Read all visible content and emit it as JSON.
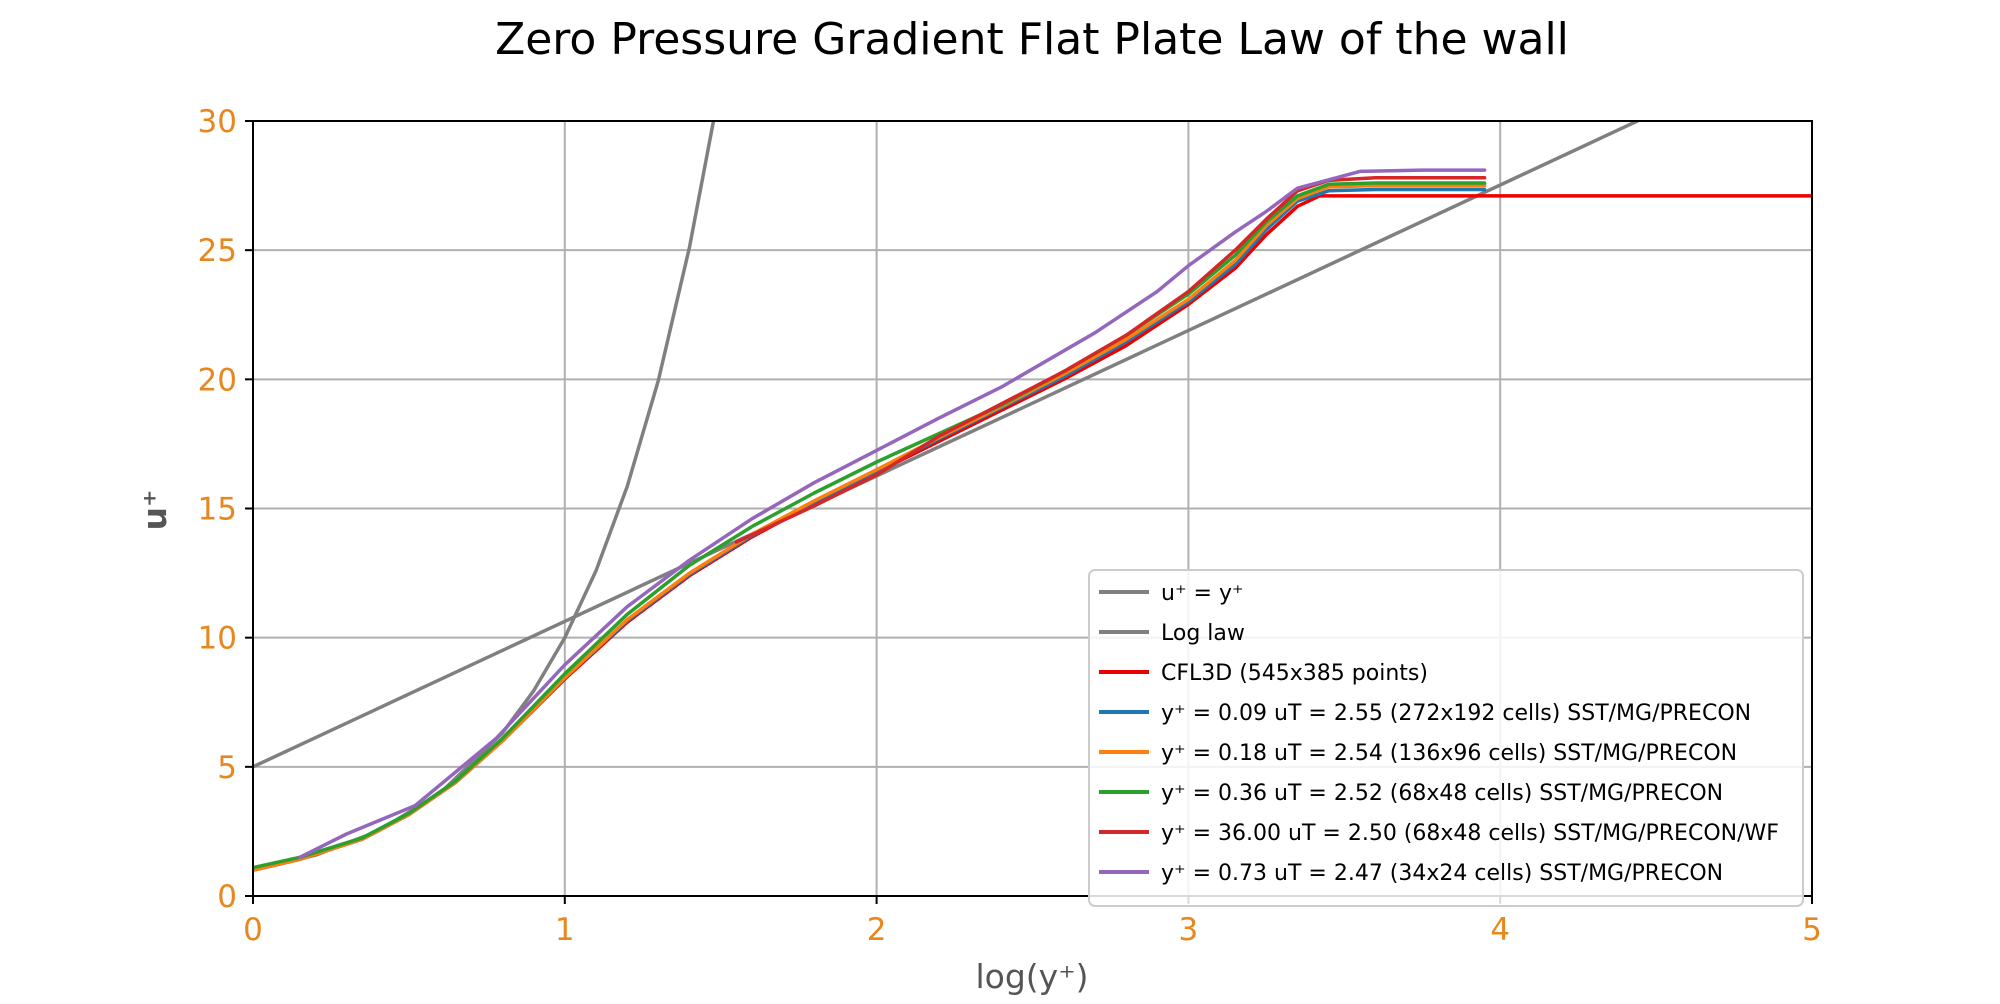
{
  "chart_data": {
    "type": "line",
    "title": "Zero Pressure Gradient Flat Plate Law of the wall",
    "xlabel": "log(y⁺)",
    "ylabel": "u⁺",
    "xlim": [
      0,
      5
    ],
    "ylim": [
      0,
      30
    ],
    "xticks": [
      "0",
      "1",
      "2",
      "3",
      "4",
      "5"
    ],
    "yticks": [
      "0",
      "5",
      "10",
      "15",
      "20",
      "25",
      "30"
    ],
    "grid": true,
    "legend_position": "bottom-right",
    "colors": {
      "tick_labels": "#E8871E",
      "axis_title": "#555555",
      "grid": "#b0b0b0"
    },
    "series": [
      {
        "name": "u⁺ = y⁺",
        "color": "#808080",
        "points": [
          [
            0,
            1.0
          ],
          [
            0.2,
            1.58
          ],
          [
            0.4,
            2.51
          ],
          [
            0.6,
            3.98
          ],
          [
            0.8,
            6.31
          ],
          [
            0.9,
            7.94
          ],
          [
            1.0,
            10.0
          ],
          [
            1.1,
            12.59
          ],
          [
            1.2,
            15.85
          ],
          [
            1.3,
            19.95
          ],
          [
            1.4,
            25.12
          ],
          [
            1.477,
            30.0
          ]
        ]
      },
      {
        "name": "Log law",
        "color": "#808080",
        "points": [
          [
            0,
            5.0
          ],
          [
            4.44,
            30.0
          ]
        ]
      },
      {
        "name": "CFL3D (545x385 points)",
        "color": "#ee0000",
        "points": [
          [
            0,
            1.0
          ],
          [
            0.15,
            1.42
          ],
          [
            0.35,
            2.2
          ],
          [
            0.5,
            3.15
          ],
          [
            0.65,
            4.4
          ],
          [
            0.8,
            6.0
          ],
          [
            1.0,
            8.4
          ],
          [
            1.2,
            10.6
          ],
          [
            1.4,
            12.4
          ],
          [
            1.6,
            13.9
          ],
          [
            1.8,
            15.2
          ],
          [
            2.0,
            16.4
          ],
          [
            2.2,
            17.6
          ],
          [
            2.4,
            18.8
          ],
          [
            2.6,
            20.0
          ],
          [
            2.8,
            21.3
          ],
          [
            3.0,
            22.9
          ],
          [
            3.15,
            24.3
          ],
          [
            3.25,
            25.6
          ],
          [
            3.35,
            26.7
          ],
          [
            3.42,
            27.1
          ],
          [
            5.0,
            27.1
          ]
        ]
      },
      {
        "name": "y⁺ = 0.09 uT = 2.55 (272x192 cells) SST/MG/PRECON",
        "color": "#1f77b4",
        "points": [
          [
            0,
            1.0
          ],
          [
            0.15,
            1.42
          ],
          [
            0.35,
            2.2
          ],
          [
            0.5,
            3.15
          ],
          [
            0.65,
            4.4
          ],
          [
            0.8,
            6.0
          ],
          [
            1.0,
            8.45
          ],
          [
            1.2,
            10.65
          ],
          [
            1.4,
            12.45
          ],
          [
            1.6,
            13.95
          ],
          [
            1.8,
            15.25
          ],
          [
            2.0,
            16.45
          ],
          [
            2.2,
            17.7
          ],
          [
            2.4,
            18.9
          ],
          [
            2.6,
            20.1
          ],
          [
            2.8,
            21.45
          ],
          [
            3.0,
            23.0
          ],
          [
            3.15,
            24.45
          ],
          [
            3.25,
            25.8
          ],
          [
            3.35,
            26.9
          ],
          [
            3.45,
            27.3
          ],
          [
            3.6,
            27.35
          ],
          [
            3.95,
            27.35
          ]
        ]
      },
      {
        "name": "y⁺ = 0.18 uT = 2.54 (136x96 cells) SST/MG/PRECON",
        "color": "#ff7f0e",
        "points": [
          [
            0,
            1.0
          ],
          [
            0.15,
            1.42
          ],
          [
            0.35,
            2.2
          ],
          [
            0.5,
            3.15
          ],
          [
            0.65,
            4.4
          ],
          [
            0.8,
            6.0
          ],
          [
            1.0,
            8.45
          ],
          [
            1.2,
            10.7
          ],
          [
            1.4,
            12.5
          ],
          [
            1.6,
            14.0
          ],
          [
            1.8,
            15.3
          ],
          [
            2.0,
            16.5
          ],
          [
            2.2,
            17.75
          ],
          [
            2.4,
            18.95
          ],
          [
            2.6,
            20.2
          ],
          [
            2.8,
            21.55
          ],
          [
            3.0,
            23.1
          ],
          [
            3.15,
            24.6
          ],
          [
            3.25,
            25.95
          ],
          [
            3.35,
            27.0
          ],
          [
            3.45,
            27.45
          ],
          [
            3.6,
            27.5
          ],
          [
            3.95,
            27.5
          ]
        ]
      },
      {
        "name": "y⁺ = 0.36 uT = 2.52 (68x48 cells) SST/MG/PRECON",
        "color": "#2ca02c",
        "points": [
          [
            0,
            1.1
          ],
          [
            0.15,
            1.5
          ],
          [
            0.35,
            2.25
          ],
          [
            0.5,
            3.2
          ],
          [
            0.65,
            4.45
          ],
          [
            0.8,
            6.1
          ],
          [
            1.0,
            8.6
          ],
          [
            1.2,
            10.9
          ],
          [
            1.4,
            12.8
          ],
          [
            1.6,
            14.3
          ],
          [
            1.8,
            15.6
          ],
          [
            2.0,
            16.8
          ],
          [
            2.2,
            17.9
          ],
          [
            2.4,
            19.0
          ],
          [
            2.6,
            20.3
          ],
          [
            2.8,
            21.7
          ],
          [
            3.0,
            23.3
          ],
          [
            3.15,
            24.8
          ],
          [
            3.25,
            26.1
          ],
          [
            3.35,
            27.1
          ],
          [
            3.45,
            27.55
          ],
          [
            3.6,
            27.6
          ],
          [
            3.95,
            27.6
          ]
        ]
      },
      {
        "name": "y⁺ = 36.00 uT = 2.50 (68x48 cells) SST/MG/PRECON/WF",
        "color": "#d62728",
        "points": [
          [
            1.55,
            13.7
          ],
          [
            1.8,
            15.1
          ],
          [
            2.0,
            16.3
          ],
          [
            2.2,
            17.8
          ],
          [
            2.4,
            19.05
          ],
          [
            2.6,
            20.3
          ],
          [
            2.8,
            21.7
          ],
          [
            3.0,
            23.4
          ],
          [
            3.15,
            25.0
          ],
          [
            3.25,
            26.2
          ],
          [
            3.35,
            27.3
          ],
          [
            3.45,
            27.7
          ],
          [
            3.6,
            27.8
          ],
          [
            3.95,
            27.8
          ]
        ]
      },
      {
        "name": "y⁺ = 0.73 uT = 2.47 (34x24 cells) SST/MG/PRECON",
        "color": "#9467bd",
        "points": [
          [
            0.15,
            1.5
          ],
          [
            0.3,
            2.4
          ],
          [
            0.52,
            3.5
          ],
          [
            0.78,
            6.1
          ],
          [
            1.0,
            8.95
          ],
          [
            1.2,
            11.2
          ],
          [
            1.4,
            13.0
          ],
          [
            1.6,
            14.6
          ],
          [
            1.8,
            16.0
          ],
          [
            2.0,
            17.25
          ],
          [
            2.2,
            18.5
          ],
          [
            2.4,
            19.7
          ],
          [
            2.7,
            21.8
          ],
          [
            2.9,
            23.4
          ],
          [
            3.0,
            24.4
          ],
          [
            3.15,
            25.7
          ],
          [
            3.25,
            26.5
          ],
          [
            3.35,
            27.4
          ],
          [
            3.55,
            28.05
          ],
          [
            3.75,
            28.1
          ],
          [
            3.95,
            28.1
          ]
        ]
      }
    ]
  }
}
